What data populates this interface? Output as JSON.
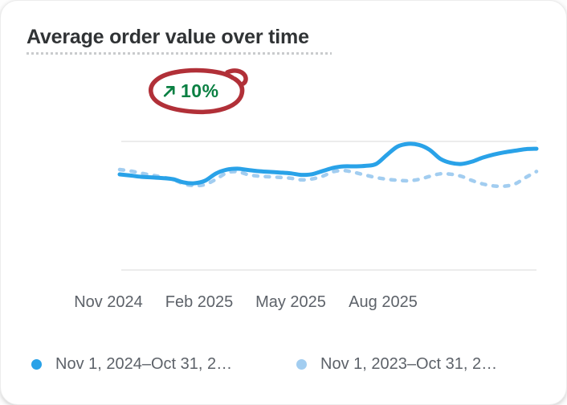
{
  "card": {
    "title": "Average order value over time",
    "trend_badge": {
      "icon": "arrow-up-right",
      "value": "10%",
      "direction": "up"
    },
    "annotation": "hand-drawn red marker circle around the 10% trend badge"
  },
  "colors": {
    "title_text": "#303335",
    "muted_text": "#5d6269",
    "grid": "#e6e6e6",
    "primary_line": "#29a2e8",
    "comparison_line": "#a2cdf0",
    "trend_green": "#0b8043",
    "annotation_red": "#b13038",
    "card_background": "#ffffff"
  },
  "chart_data": {
    "type": "line",
    "title": "Average order value over time",
    "xlabel": "",
    "ylabel": "",
    "x_tick_labels": [
      "Nov 2024",
      "Feb 2025",
      "May 2025",
      "Aug 2025"
    ],
    "x_range_months": [
      "Nov 2024",
      "Oct 2025"
    ],
    "y_axis": "unlabeled; values are relative scale 0-100 between bottom and top gridline",
    "ylim": [
      0,
      100
    ],
    "grid": "two horizontal gridlines (top and bottom of plot) only",
    "legend_position": "bottom",
    "trend_change_percent": 10,
    "series": [
      {
        "name": "Nov 1, 2024–Oct 31, 2…",
        "style": "solid",
        "color": "#29a2e8",
        "values": [
          74.4,
          73.5,
          72.5,
          72.0,
          71.5,
          70.6,
          68.1,
          67.5,
          69.5,
          75.0,
          78.0,
          78.8,
          77.8,
          76.9,
          76.3,
          75.8,
          75.2,
          74.0,
          74.5,
          77.0,
          79.5,
          80.6,
          80.6,
          81.0,
          82.5,
          89.5,
          96.0,
          98.1,
          97.3,
          93.5,
          86.5,
          83.3,
          82.5,
          84.4,
          87.5,
          89.8,
          91.5,
          92.8,
          94.0,
          94.3
        ]
      },
      {
        "name": "Nov 1, 2023–Oct 31, 2…",
        "style": "dashed",
        "color": "#a2cdf0",
        "values": [
          78.1,
          77.0,
          75.3,
          73.8,
          72.2,
          70.3,
          67.0,
          65.6,
          66.5,
          70.5,
          75.5,
          76.5,
          74.2,
          73.0,
          72.5,
          72.0,
          71.4,
          70.1,
          70.8,
          73.0,
          76.5,
          77.3,
          75.8,
          73.8,
          71.9,
          70.6,
          69.8,
          69.4,
          70.5,
          72.8,
          74.8,
          74.5,
          72.8,
          69.5,
          66.9,
          65.4,
          65.2,
          67.0,
          72.0,
          76.6
        ]
      }
    ]
  }
}
